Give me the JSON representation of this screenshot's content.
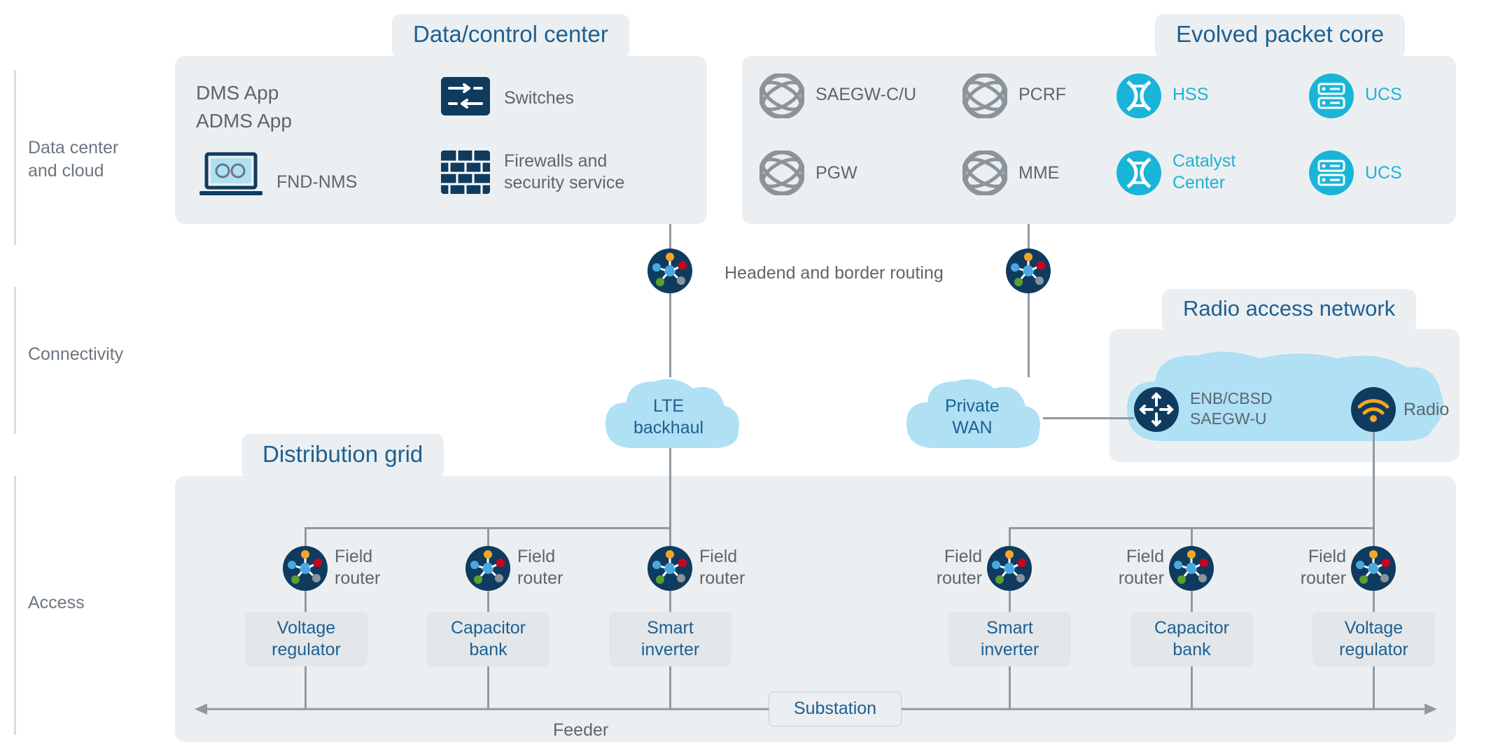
{
  "layers": {
    "data_center": "Data center\nand cloud",
    "connectivity": "Connectivity",
    "access": "Access"
  },
  "panels": {
    "data_control": "Data/control center",
    "epc": "Evolved packet core",
    "ran": "Radio access network",
    "dist_grid": "Distribution grid",
    "substation": "Substation",
    "feeder": "Feeder"
  },
  "dc_items": {
    "dms": "DMS App",
    "adms": "ADMS App",
    "fnd": "FND-NMS",
    "switches": "Switches",
    "firewalls": "Firewalls and\nsecurity service"
  },
  "epc_items": {
    "saegw": "SAEGW-C/U",
    "pgw": "PGW",
    "pcrf": "PCRF",
    "mme": "MME",
    "hss": "HSS",
    "catalyst": "Catalyst\nCenter",
    "ucs1": "UCS",
    "ucs2": "UCS"
  },
  "middle": {
    "headend": "Headend and border routing",
    "lte": "LTE\nbackhaul",
    "pwan": "Private\nWAN",
    "enb": "ENB/CBSD\nSAEGW-U",
    "radio": "Radio"
  },
  "routers": {
    "label": "Field\nrouter"
  },
  "devices": {
    "vreg": "Voltage\nregulator",
    "cap": "Capacitor\nbank",
    "smart": "Smart\ninverter"
  },
  "colors": {
    "navy": "#0f3b5f",
    "cyan": "#19b5d8",
    "gray_icon": "#8c949b",
    "cloud": "#afe0f4",
    "panel_bg": "#eceff1",
    "line": "#8e9aa3",
    "orange": "#f5a623",
    "red": "#d0021b",
    "green": "#5aa02c",
    "lightblue": "#4aa8e0"
  }
}
